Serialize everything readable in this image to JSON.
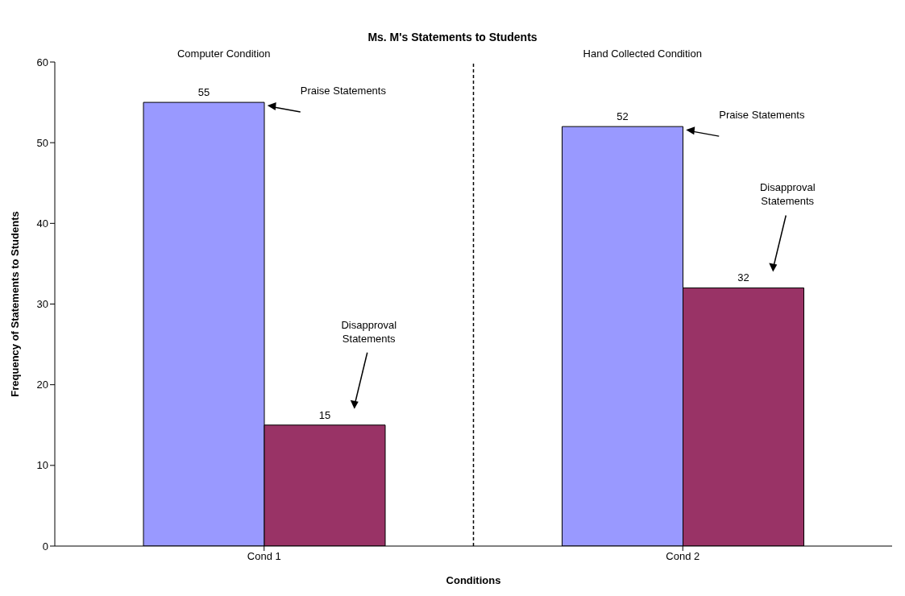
{
  "chart_data": {
    "type": "bar",
    "title": "Ms. M's Statements to Students",
    "xlabel": "Conditions",
    "ylabel": "Frequency of Statements to Students",
    "categories": [
      "Cond 1",
      "Cond 2"
    ],
    "series": [
      {
        "color": "#9999ff",
        "values": [
          55,
          52
        ]
      },
      {
        "color": "#993366",
        "values": [
          15,
          32
        ]
      }
    ],
    "ylim": [
      0,
      60
    ],
    "yticks": [
      0,
      10,
      20,
      30,
      40,
      50,
      60
    ],
    "grid": false,
    "legend": false,
    "data_labels": true,
    "annotations": [
      "Computer Condition",
      "Hand Collected Condition",
      "Praise Statements",
      "Disapproval Statements",
      "Praise Statements",
      "Disapproval Statements"
    ]
  }
}
